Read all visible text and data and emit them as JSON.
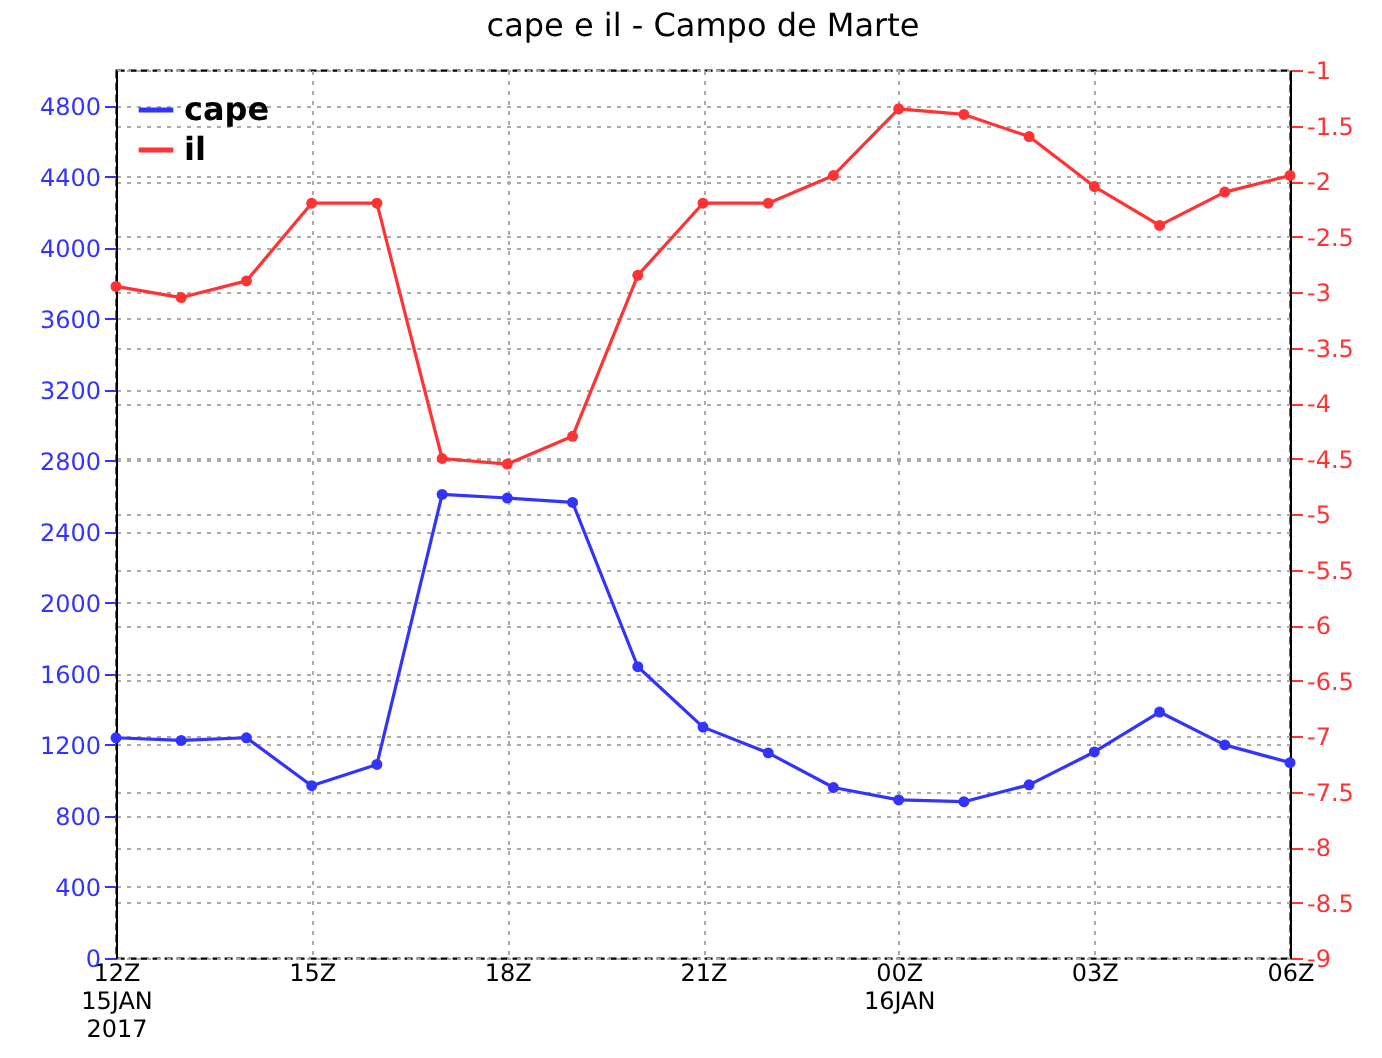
{
  "chart_data": {
    "type": "line",
    "title": "cape e il - Campo de Marte",
    "x": [
      "2017-01-15T12:00",
      "2017-01-15T13:00",
      "2017-01-15T14:00",
      "2017-01-15T15:00",
      "2017-01-15T16:00",
      "2017-01-15T17:00",
      "2017-01-15T18:00",
      "2017-01-15T19:00",
      "2017-01-15T20:00",
      "2017-01-15T21:00",
      "2017-01-15T22:00",
      "2017-01-15T23:00",
      "2017-01-16T00:00",
      "2017-01-16T01:00",
      "2017-01-16T02:00",
      "2017-01-16T03:00",
      "2017-01-16T04:00",
      "2017-01-16T05:00",
      "2017-01-16T06:00"
    ],
    "series": [
      {
        "name": "cape",
        "color": "#3333ff",
        "values": [
          1240,
          1225,
          1240,
          970,
          1090,
          2610,
          2590,
          2565,
          1640,
          1300,
          1155,
          960,
          890,
          880,
          975,
          1160,
          1385,
          1200,
          1100
        ]
      },
      {
        "name": "il",
        "color": "#ff3333",
        "axis": "y2",
        "values": [
          -2.95,
          -3.05,
          -2.9,
          -2.2,
          -2.2,
          -4.5,
          -4.55,
          -4.3,
          -2.85,
          -2.2,
          -2.2,
          -1.95,
          -1.35,
          -1.4,
          -1.6,
          -2.05,
          -2.4,
          -2.1,
          -1.95
        ]
      }
    ],
    "xlim": [
      "2017-01-15T12:00",
      "2017-01-16T06:00"
    ],
    "xticks": [
      {
        "value": "2017-01-15T12:00",
        "label": "12Z\n15JAN\n2017"
      },
      {
        "value": "2017-01-15T15:00",
        "label": "15Z"
      },
      {
        "value": "2017-01-15T18:00",
        "label": "18Z"
      },
      {
        "value": "2017-01-15T21:00",
        "label": "21Z"
      },
      {
        "value": "2017-01-16T00:00",
        "label": "00Z\n16JAN"
      },
      {
        "value": "2017-01-16T03:00",
        "label": "03Z"
      },
      {
        "value": "2017-01-16T06:00",
        "label": "06Z"
      }
    ],
    "ylim": [
      0,
      5000
    ],
    "yticks": [
      0,
      400,
      800,
      1200,
      1600,
      2000,
      2400,
      2800,
      3200,
      3600,
      4000,
      4400,
      4800
    ],
    "y2lim": [
      -9,
      -1
    ],
    "y2ticks": [
      -9,
      -8.5,
      -8,
      -7.5,
      -7,
      -6.5,
      -6,
      -5.5,
      -5,
      -4.5,
      -4,
      -3.5,
      -3,
      -2.5,
      -2,
      -1.5,
      -1
    ],
    "grid": true,
    "legend": "top left",
    "marker": "circle"
  }
}
